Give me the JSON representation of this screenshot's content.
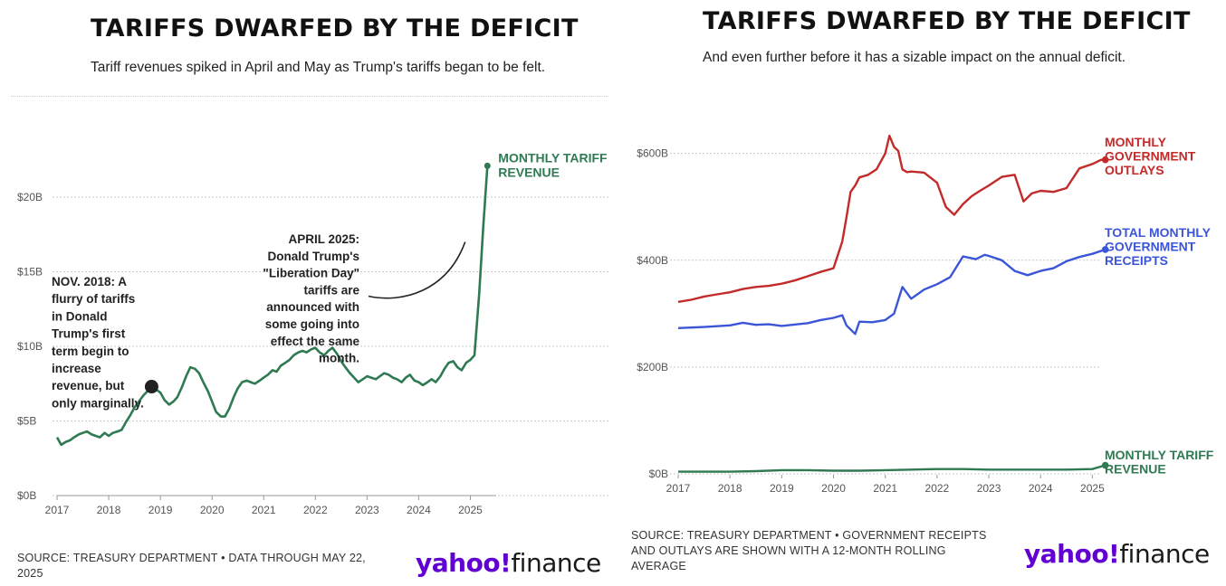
{
  "left": {
    "title": "TARIFFS DWARFED BY THE DEFICIT",
    "subtitle": "Tariff revenues spiked in April and May as Trump's tariffs began to be felt.",
    "source_line1": "SOURCE: TREASURY DEPARTMENT • DATA THROUGH MAY 22,",
    "source_line2": "2025",
    "brand_left": "yahoo!",
    "brand_right": "finance"
  },
  "right": {
    "title": "TARIFFS DWARFED BY THE DEFICIT",
    "subtitle": "And even further before it has a sizable impact on the annual deficit.",
    "source_line1": "SOURCE: TREASURY DEPARTMENT • GOVERNMENT RECEIPTS",
    "source_line2": "AND OUTLAYS ARE SHOWN WITH A 12-MONTH ROLLING",
    "source_line3": "AVERAGE",
    "brand_left": "yahoo!",
    "brand_right": "finance"
  },
  "colors": {
    "tariff": "#2f7a52",
    "outlays": "#c32a2a",
    "receipts": "#3b55d9",
    "grid": "#c8c8c8"
  },
  "chart_data": [
    {
      "type": "line",
      "title": "TARIFFS DWARFED BY THE DEFICIT",
      "subtitle": "Tariff revenues spiked in April and May as Trump's tariffs began to be felt.",
      "xlabel": "",
      "ylabel": "",
      "xlim": [
        2017,
        2025.5
      ],
      "ylim": [
        0,
        22
      ],
      "x_ticks": [
        2017,
        2018,
        2019,
        2020,
        2021,
        2022,
        2023,
        2024,
        2025
      ],
      "x_tick_labels": [
        "2017",
        "2018",
        "2019",
        "2020",
        "2021",
        "2022",
        "2023",
        "2024",
        "2025"
      ],
      "y_ticks": [
        0,
        5,
        10,
        15,
        20
      ],
      "y_tick_labels": [
        "$0B",
        "$5B",
        "$10B",
        "$15B",
        "$20B"
      ],
      "grid": "horizontal",
      "series": [
        {
          "name": "MONTHLY TARIFF REVENUE",
          "label_lines": [
            "MONTHLY TARIFF",
            "REVENUE"
          ],
          "x": [
            2017.0,
            2017.08,
            2017.17,
            2017.25,
            2017.33,
            2017.42,
            2017.5,
            2017.58,
            2017.67,
            2017.75,
            2017.83,
            2017.92,
            2018.0,
            2018.08,
            2018.17,
            2018.25,
            2018.33,
            2018.42,
            2018.5,
            2018.58,
            2018.67,
            2018.75,
            2018.83,
            2018.92,
            2019.0,
            2019.08,
            2019.17,
            2019.25,
            2019.33,
            2019.42,
            2019.5,
            2019.58,
            2019.67,
            2019.75,
            2019.83,
            2019.92,
            2020.0,
            2020.08,
            2020.17,
            2020.25,
            2020.33,
            2020.42,
            2020.5,
            2020.58,
            2020.67,
            2020.75,
            2020.83,
            2020.92,
            2021.0,
            2021.08,
            2021.17,
            2021.25,
            2021.33,
            2021.42,
            2021.5,
            2021.58,
            2021.67,
            2021.75,
            2021.83,
            2021.92,
            2022.0,
            2022.08,
            2022.17,
            2022.25,
            2022.33,
            2022.42,
            2022.5,
            2022.58,
            2022.67,
            2022.75,
            2022.83,
            2022.92,
            2023.0,
            2023.08,
            2023.17,
            2023.25,
            2023.33,
            2023.42,
            2023.5,
            2023.58,
            2023.67,
            2023.75,
            2023.83,
            2023.92,
            2024.0,
            2024.08,
            2024.17,
            2024.25,
            2024.33,
            2024.42,
            2024.5,
            2024.58,
            2024.67,
            2024.75,
            2024.83,
            2024.92,
            2025.0,
            2025.08,
            2025.17,
            2025.25,
            2025.33
          ],
          "values": [
            3.9,
            3.4,
            3.6,
            3.7,
            3.9,
            4.1,
            4.2,
            4.3,
            4.1,
            4.0,
            3.9,
            4.2,
            4.0,
            4.2,
            4.3,
            4.4,
            4.9,
            5.4,
            5.9,
            6.3,
            6.7,
            7.0,
            7.3,
            7.1,
            6.9,
            6.4,
            6.1,
            6.3,
            6.6,
            7.3,
            8.0,
            8.6,
            8.5,
            8.2,
            7.6,
            7.0,
            6.3,
            5.6,
            5.3,
            5.3,
            5.8,
            6.6,
            7.2,
            7.6,
            7.7,
            7.6,
            7.5,
            7.7,
            7.9,
            8.1,
            8.4,
            8.3,
            8.7,
            8.9,
            9.1,
            9.4,
            9.6,
            9.7,
            9.6,
            9.8,
            9.9,
            9.6,
            9.4,
            9.7,
            9.9,
            9.5,
            9.0,
            8.6,
            8.2,
            7.9,
            7.6,
            7.8,
            8.0,
            7.9,
            7.8,
            8.0,
            8.2,
            8.1,
            7.9,
            7.8,
            7.6,
            7.9,
            8.1,
            7.7,
            7.6,
            7.4,
            7.6,
            7.8,
            7.6,
            8.0,
            8.5,
            8.9,
            9.0,
            8.6,
            8.4,
            8.9,
            9.1,
            9.4,
            13.5,
            18.0,
            22.1
          ]
        }
      ],
      "annotations": [
        {
          "lines": [
            "NOV. 2018: A",
            "flurry of tariffs",
            "in Donald",
            "Trump's first",
            "term begin to",
            "increase",
            "revenue, but",
            "only marginally."
          ],
          "x": 2018.83,
          "y": 7.3
        },
        {
          "lines": [
            "APRIL 2025:",
            "Donald Trump's",
            "\"Liberation Day\"",
            "tariffs are",
            "announced with",
            "some going into",
            "effect the same",
            "month."
          ],
          "x": 2025.25,
          "y": 17.0
        }
      ]
    },
    {
      "type": "line",
      "title": "TARIFFS DWARFED BY THE DEFICIT",
      "subtitle": "And even further before it has a sizable impact on the annual deficit.",
      "xlabel": "",
      "ylabel": "",
      "xlim": [
        2017,
        2025.5
      ],
      "ylim": [
        0,
        640
      ],
      "x_ticks": [
        2017,
        2018,
        2019,
        2020,
        2021,
        2022,
        2023,
        2024,
        2025
      ],
      "x_tick_labels": [
        "2017",
        "2018",
        "2019",
        "2020",
        "2021",
        "2022",
        "2023",
        "2024",
        "2025"
      ],
      "y_ticks": [
        0,
        200,
        400,
        600
      ],
      "y_tick_labels": [
        "$0B",
        "$200B",
        "$400B",
        "$600B"
      ],
      "grid": "horizontal",
      "series": [
        {
          "name": "MONTHLY GOVERNMENT OUTLAYS",
          "label_lines": [
            "MONTHLY",
            "GOVERNMENT",
            "OUTLAYS"
          ],
          "x": [
            2017.0,
            2017.25,
            2017.5,
            2017.75,
            2018.0,
            2018.25,
            2018.5,
            2018.75,
            2019.0,
            2019.25,
            2019.5,
            2019.75,
            2020.0,
            2020.17,
            2020.25,
            2020.33,
            2020.42,
            2020.5,
            2020.67,
            2020.83,
            2021.0,
            2021.08,
            2021.17,
            2021.25,
            2021.33,
            2021.42,
            2021.5,
            2021.75,
            2022.0,
            2022.17,
            2022.33,
            2022.5,
            2022.67,
            2022.83,
            2023.0,
            2023.25,
            2023.5,
            2023.67,
            2023.83,
            2024.0,
            2024.25,
            2024.5,
            2024.75,
            2025.0,
            2025.17,
            2025.25
          ],
          "values": [
            322,
            326,
            332,
            336,
            340,
            346,
            350,
            352,
            356,
            362,
            370,
            378,
            385,
            435,
            480,
            528,
            540,
            555,
            560,
            570,
            600,
            633,
            612,
            605,
            570,
            565,
            566,
            564,
            545,
            500,
            485,
            505,
            520,
            530,
            540,
            556,
            560,
            510,
            525,
            530,
            528,
            535,
            572,
            580,
            588,
            588
          ]
        },
        {
          "name": "TOTAL MONTHLY GOVERNMENT RECEIPTS",
          "label_lines": [
            "TOTAL MONTHLY",
            "GOVERNMENT",
            "RECEIPTS"
          ],
          "x": [
            2017.0,
            2017.5,
            2018.0,
            2018.25,
            2018.5,
            2018.75,
            2019.0,
            2019.5,
            2019.75,
            2020.0,
            2020.17,
            2020.25,
            2020.42,
            2020.5,
            2020.75,
            2021.0,
            2021.17,
            2021.25,
            2021.33,
            2021.5,
            2021.75,
            2022.0,
            2022.25,
            2022.5,
            2022.75,
            2022.92,
            2023.0,
            2023.25,
            2023.5,
            2023.75,
            2024.0,
            2024.25,
            2024.5,
            2024.75,
            2025.0,
            2025.25
          ],
          "values": [
            273,
            275,
            278,
            283,
            279,
            280,
            277,
            282,
            288,
            292,
            297,
            278,
            262,
            285,
            284,
            288,
            300,
            325,
            350,
            328,
            345,
            355,
            368,
            407,
            402,
            410,
            408,
            400,
            380,
            372,
            380,
            385,
            398,
            406,
            412,
            420
          ]
        },
        {
          "name": "MONTHLY TARIFF REVENUE",
          "label_lines": [
            "MONTHLY TARIFF",
            "REVENUE"
          ],
          "x": [
            2017.0,
            2017.5,
            2018.0,
            2018.5,
            2019.0,
            2019.5,
            2020.0,
            2020.5,
            2021.0,
            2021.5,
            2022.0,
            2022.5,
            2023.0,
            2023.5,
            2024.0,
            2024.5,
            2025.0,
            2025.25
          ],
          "values": [
            4,
            4,
            4,
            5,
            7,
            7,
            6,
            6,
            7,
            8,
            9,
            9,
            8,
            8,
            8,
            8,
            9,
            16
          ]
        }
      ]
    }
  ]
}
